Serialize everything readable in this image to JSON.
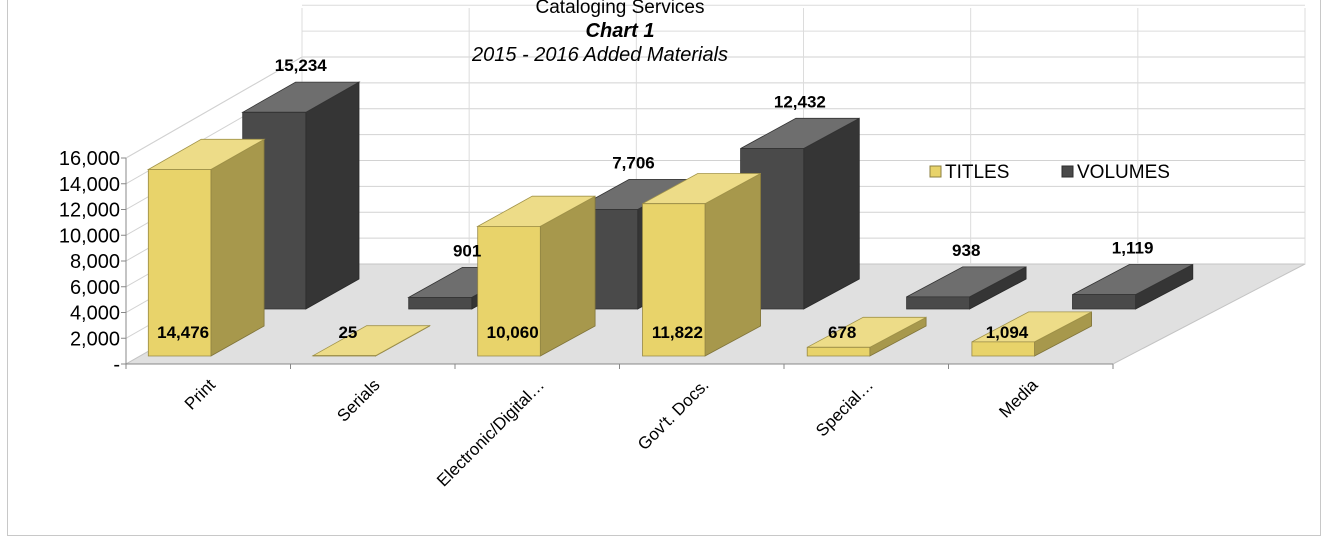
{
  "chart_data": {
    "type": "bar",
    "title": "Cataloging Services",
    "subtitle": "Chart 1",
    "caption": "2015 - 2016 Added Materials",
    "categories": [
      "Print",
      "Serials",
      "Electronic/Digital…",
      "Gov't. Docs.",
      "Special…",
      "Media"
    ],
    "series": [
      {
        "name": "TITLES",
        "values": [
          14476,
          25,
          10060,
          11822,
          678,
          1094
        ],
        "labels": [
          "14,476",
          "25",
          "10,060",
          "11,822",
          "678",
          "1,094"
        ]
      },
      {
        "name": "VOLUMES",
        "values": [
          15234,
          901,
          7706,
          12432,
          938,
          1119
        ],
        "labels": [
          "15,234",
          "901",
          "7,706",
          "12,432",
          "938",
          "1,119"
        ]
      }
    ],
    "ytick_labels": [
      "-",
      "2,000",
      "4,000",
      "6,000",
      "8,000",
      "10,000",
      "12,000",
      "14,000",
      "16,000"
    ],
    "ylim": [
      0,
      16000
    ],
    "grid": true,
    "legend_position": "right",
    "colors": {
      "TITLES": "#e8d36a",
      "VOLUMES": "#4a4a4a"
    }
  }
}
